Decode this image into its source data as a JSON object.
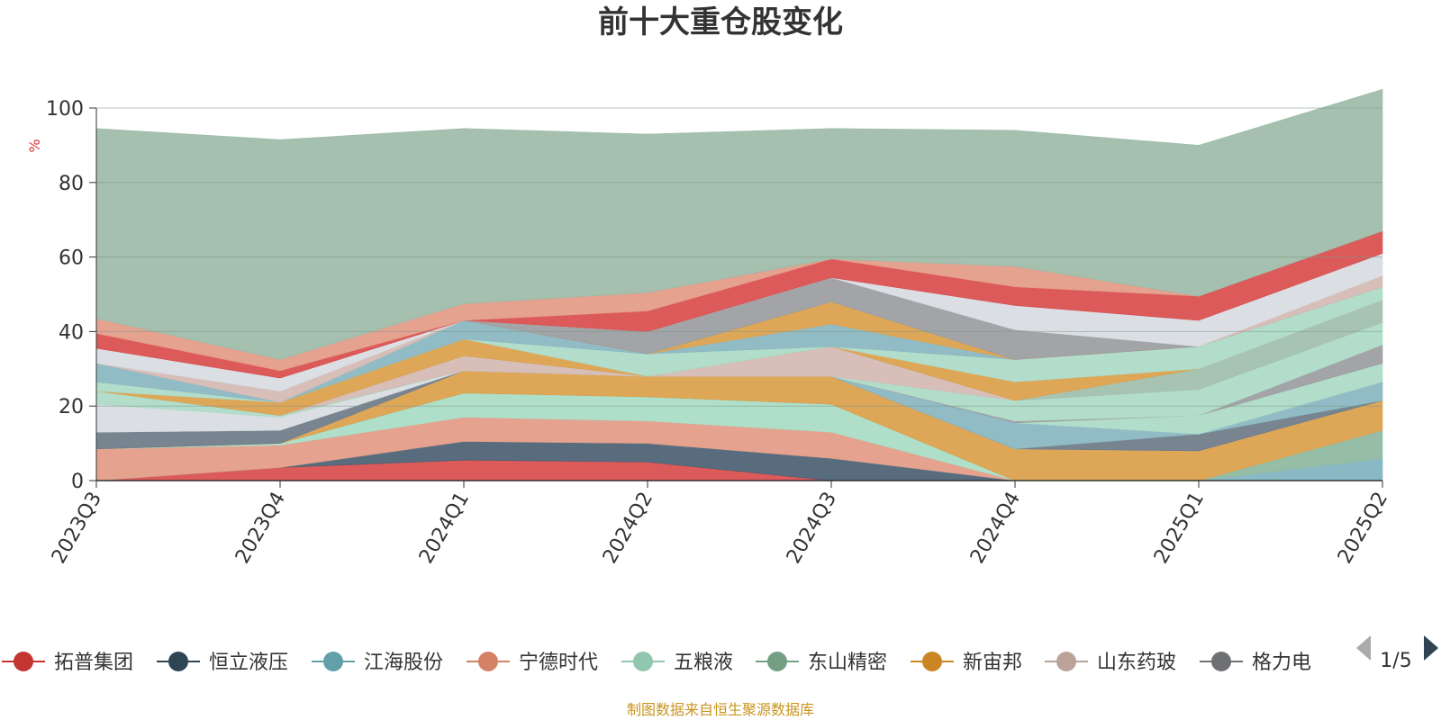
{
  "chart_data": {
    "type": "area",
    "title": "前十大重仓股变化",
    "ylabel": "%",
    "ylim": [
      0,
      100
    ],
    "yticks": [
      0,
      20,
      40,
      60,
      80,
      100
    ],
    "categories": [
      "2023Q3",
      "2023Q4",
      "2024Q1",
      "2024Q2",
      "2024Q3",
      "2024Q4",
      "2025Q1",
      "2025Q2"
    ],
    "stacked": true,
    "series": [
      {
        "name": "拓普集团",
        "values": [
          0.0,
          3.5,
          5.5,
          5.0,
          0.0,
          0.0,
          0.0,
          0.0
        ],
        "color": "#d94c4c"
      },
      {
        "name": "恒立液压",
        "values": [
          0.0,
          0.0,
          5.0,
          5.0,
          6.0,
          0.0,
          0.0,
          0.0
        ],
        "color": "#4a5f73"
      },
      {
        "name": "江海股份",
        "values": [
          0.0,
          0.0,
          0.0,
          0.0,
          0.0,
          0.0,
          0.0,
          6.0
        ],
        "color": "#7fb3c0"
      },
      {
        "name": "宁德时代",
        "values": [
          8.5,
          6.0,
          6.5,
          6.0,
          7.0,
          0.0,
          0.0,
          0.0
        ],
        "color": "#e39a85"
      },
      {
        "name": "五粮液",
        "values": [
          0.0,
          0.5,
          6.5,
          6.5,
          7.5,
          0.0,
          0.0,
          0.0
        ],
        "color": "#a8dcc4"
      },
      {
        "name": "东山精密",
        "values": [
          0.0,
          0.0,
          0.0,
          0.0,
          0.0,
          0.0,
          0.0,
          7.5
        ],
        "color": "#8db8a0"
      },
      {
        "name": "新宙邦",
        "values": [
          0.0,
          0.0,
          6.0,
          5.5,
          7.5,
          8.5,
          8.0,
          8.0
        ],
        "color": "#dba04a"
      },
      {
        "name": "山东药玻",
        "values": [
          0.0,
          0.0,
          0.0,
          0.0,
          0.0,
          0.0,
          0.0,
          0.0
        ],
        "color": "#d6b5ae"
      },
      {
        "name": "格力电器",
        "values": [
          4.5,
          3.5,
          0.0,
          0.0,
          0.0,
          0.0,
          4.5,
          0.0
        ],
        "color": "#6c7a86"
      },
      {
        "name": "",
        "values": [
          0.0,
          0.0,
          0.0,
          0.0,
          0.0,
          7.0,
          0.0,
          5.0
        ],
        "color": "#88b6c0"
      },
      {
        "name": "",
        "values": [
          0.0,
          0.0,
          0.0,
          0.0,
          0.0,
          0.0,
          5.0,
          5.0
        ],
        "color": "#abdac6"
      },
      {
        "name": "",
        "values": [
          0.0,
          0.0,
          0.0,
          0.0,
          0.0,
          0.5,
          0.0,
          5.0
        ],
        "color": "#9a9ca0"
      },
      {
        "name": "",
        "values": [
          7.5,
          3.5,
          0.0,
          0.0,
          0.0,
          0.0,
          0.0,
          0.0
        ],
        "color": "#d8dce2"
      },
      {
        "name": "",
        "values": [
          3.5,
          0.5,
          0.0,
          0.0,
          0.0,
          5.5,
          7.0,
          6.0
        ],
        "color": "#abdac6"
      },
      {
        "name": "",
        "values": [
          0.0,
          0.0,
          4.0,
          0.0,
          8.0,
          0.0,
          0.0,
          0.0
        ],
        "color": "#d5b8b2"
      },
      {
        "name": "",
        "values": [
          0.0,
          0.0,
          0.0,
          0.0,
          0.0,
          0.0,
          5.5,
          6.0
        ],
        "color": "#9fbfac"
      },
      {
        "name": "",
        "values": [
          0.0,
          3.5,
          4.5,
          0.0,
          0.0,
          5.0,
          0.0,
          0.0
        ],
        "color": "#dba04a"
      },
      {
        "name": "",
        "values": [
          2.5,
          0.0,
          0.0,
          6.0,
          0.0,
          6.0,
          6.0,
          3.5
        ],
        "color": "#abdac6"
      },
      {
        "name": "",
        "values": [
          5.0,
          0.0,
          5.0,
          0.0,
          6.0,
          0.0,
          0.0,
          0.0
        ],
        "color": "#88b6c0"
      },
      {
        "name": "",
        "values": [
          0.0,
          3.0,
          0.0,
          0.0,
          0.0,
          0.0,
          0.0,
          3.0
        ],
        "color": "#d5b8b2"
      },
      {
        "name": "",
        "values": [
          0.0,
          0.0,
          0.0,
          0.0,
          6.0,
          0.0,
          0.0,
          0.0
        ],
        "color": "#dba04a"
      },
      {
        "name": "",
        "values": [
          0.0,
          0.0,
          0.0,
          6.0,
          6.5,
          8.0,
          0.0,
          0.0
        ],
        "color": "#9a9ca0"
      },
      {
        "name": "",
        "values": [
          0.0,
          0.0,
          0.0,
          0.0,
          0.0,
          0.0,
          7.0,
          6.0
        ],
        "color": "#d8dce2"
      },
      {
        "name": "",
        "values": [
          4.0,
          3.5,
          0.0,
          0.0,
          0.0,
          6.5,
          0.0,
          0.0
        ],
        "color": "#d8dce2"
      },
      {
        "name": "",
        "values": [
          4.0,
          2.0,
          0.0,
          5.5,
          5.0,
          5.0,
          6.5,
          6.0
        ],
        "color": "#d94c4c"
      },
      {
        "name": "",
        "values": [
          4.0,
          3.0,
          4.5,
          5.0,
          0.0,
          5.5,
          0.0,
          0.0
        ],
        "color": "#e39a85"
      },
      {
        "name": "",
        "values": [
          0.0,
          0.0,
          0.0,
          0.0,
          0.0,
          0.0,
          0.0,
          0.0
        ],
        "color": "#88b6c0"
      },
      {
        "name": "",
        "values": [
          51.0,
          59.0,
          47.0,
          42.5,
          35.0,
          36.5,
          40.5,
          38.0
        ],
        "color": "#9dbba7"
      }
    ],
    "legend": {
      "position": "bottom",
      "visible_items": [
        {
          "name": "拓普集团",
          "color": "#c23531"
        },
        {
          "name": "恒立液压",
          "color": "#2f4554"
        },
        {
          "name": "江海股份",
          "color": "#61a0a8"
        },
        {
          "name": "宁德时代",
          "color": "#d48265"
        },
        {
          "name": "五粮液",
          "color": "#91c7ae"
        },
        {
          "name": "东山精密",
          "color": "#749f83"
        },
        {
          "name": "新宙邦",
          "color": "#ca8622"
        },
        {
          "name": "山东药玻",
          "color": "#bda29a"
        },
        {
          "name": "格力电",
          "color": "#6e7074"
        }
      ],
      "page": "1/5"
    },
    "grid": true
  },
  "source": "制图数据来自恒生聚源数据库"
}
